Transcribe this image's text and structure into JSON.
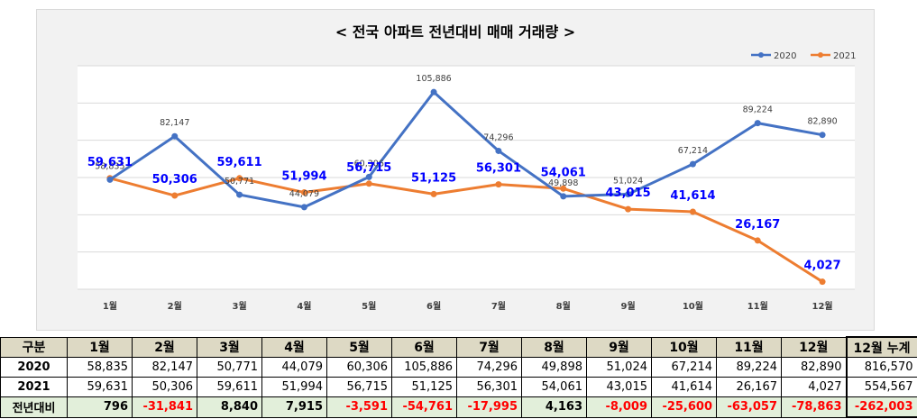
{
  "chart_data": {
    "type": "line",
    "title": "< 전국  아파트 전년대비 매매 거래량 >",
    "categories": [
      "1월",
      "2월",
      "3월",
      "4월",
      "5월",
      "6월",
      "7월",
      "8월",
      "9월",
      "10월",
      "11월",
      "12월"
    ],
    "series": [
      {
        "name": "2020",
        "color": "#4472c4",
        "values": [
          58835,
          82147,
          50771,
          44079,
          60306,
          105886,
          74296,
          49898,
          51024,
          67214,
          89224,
          82890
        ],
        "labels": [
          "58,835",
          "82,147",
          "50,771",
          "44,079",
          "60,306",
          "105,886",
          "74,296",
          "49,898",
          "51,024",
          "67,214",
          "89,224",
          "82,890"
        ]
      },
      {
        "name": "2021",
        "color": "#ed7d31",
        "values": [
          59631,
          50306,
          59611,
          51994,
          56715,
          51125,
          56301,
          54061,
          43015,
          41614,
          26167,
          4027
        ],
        "labels": [
          "59,631",
          "50,306",
          "59,611",
          "51,994",
          "56,715",
          "51,125",
          "56,301",
          "54,061",
          "43,015",
          "41,614",
          "26,167",
          "4,027"
        ]
      }
    ],
    "ylim": [
      0,
      120000
    ],
    "grid": true,
    "legend": "top-right"
  },
  "table": {
    "headers": [
      "구분",
      "1월",
      "2월",
      "3월",
      "4월",
      "5월",
      "6월",
      "7월",
      "8월",
      "9월",
      "10월",
      "11월",
      "12월",
      "12월 누계"
    ],
    "rows": [
      {
        "label": "2020",
        "cells": [
          "58,835",
          "82,147",
          "50,771",
          "44,079",
          "60,306",
          "105,886",
          "74,296",
          "49,898",
          "51,024",
          "67,214",
          "89,224",
          "82,890",
          "816,570"
        ]
      },
      {
        "label": "2021",
        "cells": [
          "59,631",
          "50,306",
          "59,611",
          "51,994",
          "56,715",
          "51,125",
          "56,301",
          "54,061",
          "43,015",
          "41,614",
          "26,167",
          "4,027",
          "554,567"
        ]
      },
      {
        "label": "전년대비",
        "cells": [
          "796",
          "-31,841",
          "8,840",
          "7,915",
          "-3,591",
          "-54,761",
          "-17,995",
          "4,163",
          "-8,009",
          "-25,600",
          "-63,057",
          "-78,863",
          "-262,003"
        ]
      }
    ]
  },
  "colors": {
    "series_2020": "#4472c4",
    "series_2021": "#ed7d31",
    "label_2021": "#0000ff",
    "negative": "#ff0000"
  }
}
